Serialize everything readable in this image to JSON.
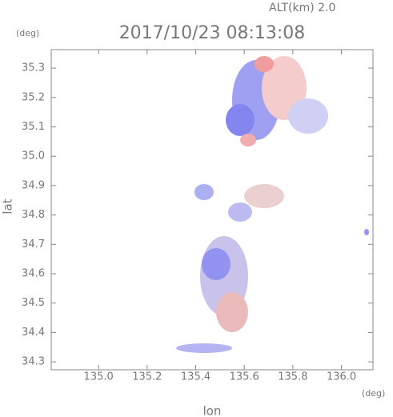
{
  "chart_data": {
    "type": "map",
    "title": "2017/10/23 08:13:08",
    "subtitle": "ALT(km) 2.0",
    "xlabel": "lon",
    "ylabel": "lat",
    "x_unit": "(deg)",
    "y_unit": "(deg)",
    "xlim": [
      134.805,
      136.13
    ],
    "ylim": [
      34.273,
      35.363
    ],
    "xticks": [
      {
        "value": 135.0,
        "label": "135.0"
      },
      135.2,
      135.4,
      135.6,
      135.8,
      {
        "value": 136.0,
        "label": "136.0"
      }
    ],
    "yticks": [
      34.3,
      34.4,
      34.5,
      34.6,
      34.7,
      34.8,
      34.9,
      {
        "value": 35.0,
        "label": "35.0"
      },
      35.1,
      35.2,
      35.3
    ]
  }
}
